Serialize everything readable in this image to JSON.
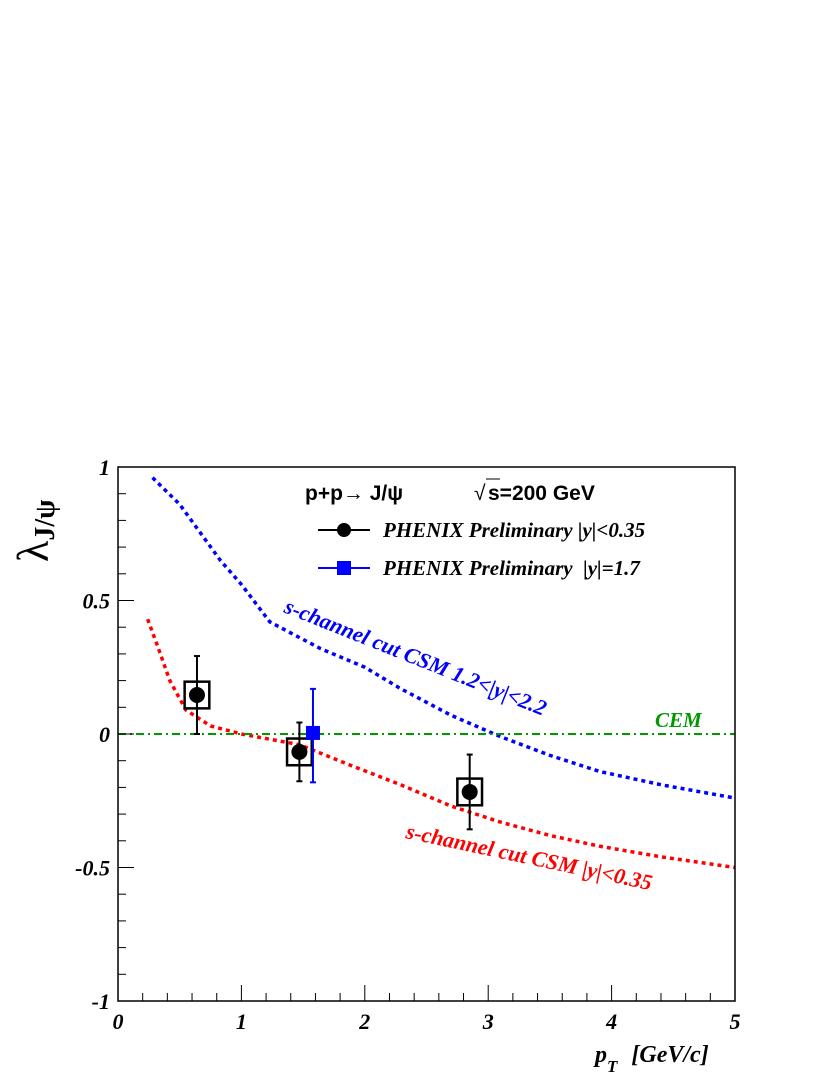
{
  "chart_data": {
    "type": "scatter",
    "title": "",
    "header": {
      "process": "p+p→ J/ψ",
      "energy": "s=200 GeV"
    },
    "xlabel": "p",
    "xlabel_sub": "T",
    "xlabel_unit": "[GeV/c]",
    "ylabel": "λ",
    "ylabel_sub": "J/ψ",
    "xlim": [
      0,
      5
    ],
    "ylim": [
      -1,
      1
    ],
    "xticks": [
      "0",
      "1",
      "2",
      "3",
      "4",
      "5"
    ],
    "yticks": [
      "-1",
      "-0.5",
      "0",
      "0.5",
      "1"
    ],
    "grid": false,
    "legend_position": "top-right",
    "series": [
      {
        "name": "PHENIX Preliminary |y|<0.35",
        "color": "#000000",
        "marker": "circle",
        "x": [
          0.64,
          1.47,
          2.85
        ],
        "y": [
          0.146,
          -0.067,
          -0.217
        ],
        "err_up": [
          0.146,
          0.11,
          0.14
        ],
        "err_down": [
          0.146,
          0.11,
          0.14
        ],
        "sys_x": [
          0.1,
          0.1,
          0.1
        ],
        "sys_y": [
          0.05,
          0.05,
          0.05
        ]
      },
      {
        "name": "PHENIX Preliminary  |y|=1.7",
        "color": "#0000ff",
        "marker": "square",
        "x": [
          1.58
        ],
        "y": [
          0.004
        ],
        "err_up": [
          0.165
        ],
        "err_down": [
          0.185
        ]
      }
    ],
    "curves": [
      {
        "label": "s-channel cut CSM 1.2<|y|<2.2",
        "color": "#0000ff",
        "style": "dotted",
        "x": [
          0.28,
          0.5,
          0.83,
          1.0,
          1.23,
          1.64,
          2.0,
          2.29,
          2.7,
          3.1,
          3.5,
          3.9,
          4.4,
          5.0
        ],
        "y": [
          0.96,
          0.86,
          0.65,
          0.56,
          0.42,
          0.32,
          0.25,
          0.17,
          0.07,
          -0.01,
          -0.08,
          -0.14,
          -0.19,
          -0.24
        ]
      },
      {
        "label": "s-channel cut CSM |y|<0.35",
        "color": "#ff0000",
        "style": "dotted",
        "x": [
          0.24,
          0.32,
          0.42,
          0.55,
          0.75,
          1.0,
          1.47,
          1.9,
          2.29,
          2.7,
          3.1,
          3.5,
          3.9,
          4.4,
          5.0
        ],
        "y": [
          0.43,
          0.33,
          0.2,
          0.09,
          0.03,
          0.0,
          -0.04,
          -0.12,
          -0.19,
          -0.27,
          -0.33,
          -0.38,
          -0.42,
          -0.46,
          -0.5
        ]
      },
      {
        "label": "CEM",
        "color": "#009900",
        "style": "dash-dot",
        "x": [
          0,
          5
        ],
        "y": [
          0,
          0
        ]
      }
    ]
  }
}
